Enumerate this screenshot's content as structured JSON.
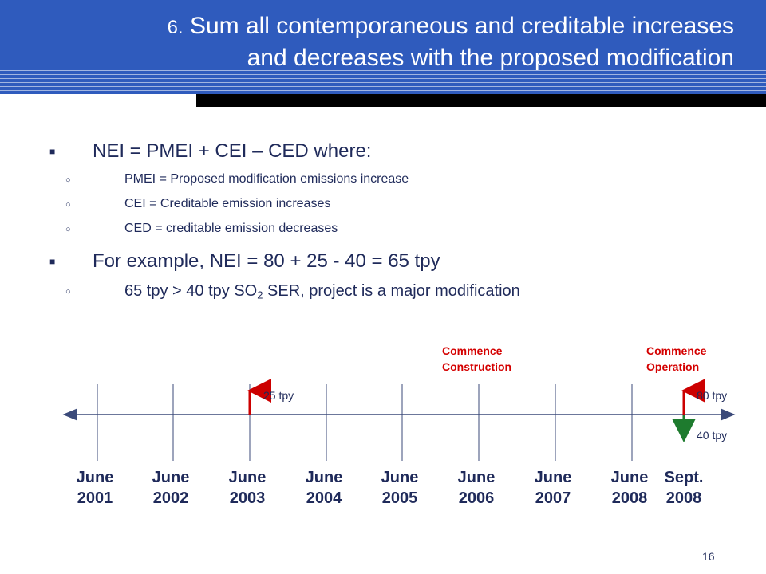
{
  "title": {
    "number": "6.",
    "line1": "Sum all contemporaneous and creditable increases",
    "line2": "and decreases with the proposed modification"
  },
  "bullets": {
    "nei": "NEI = PMEI + CEI – CED where:",
    "pmei": "PMEI = Proposed modification emissions increase",
    "cei": "CEI = Creditable emission increases",
    "ced": "CED = creditable emission decreases",
    "example": "For example,  NEI = 80 + 25 - 40 = 65 tpy",
    "sub_pre": "65 tpy > 40 tpy SO",
    "sub_so2": "2",
    "sub_post": " SER, project is a major modification"
  },
  "timeline": {
    "dates": [
      {
        "month": "June",
        "year": "2001"
      },
      {
        "month": "June",
        "year": "2002"
      },
      {
        "month": "June",
        "year": "2003"
      },
      {
        "month": "June",
        "year": "2004"
      },
      {
        "month": "June",
        "year": "2005"
      },
      {
        "month": "June",
        "year": "2006"
      },
      {
        "month": "June",
        "year": "2007"
      },
      {
        "month": "June",
        "year": "2008"
      },
      {
        "month": "Sept.",
        "year": "2008"
      }
    ],
    "events": {
      "construction": {
        "line1": "Commence",
        "line2": "Construction"
      },
      "operation": {
        "line1": "Commence",
        "line2": "Operation"
      }
    },
    "emissions": {
      "increase_2003": "25 tpy",
      "increase_2008": "80 tpy",
      "decrease_2008": "40 tpy"
    },
    "colors": {
      "increase": "#cc0000",
      "decrease": "#1e7b2e",
      "axis": "#3b4a7a"
    }
  },
  "page_number": "16"
}
